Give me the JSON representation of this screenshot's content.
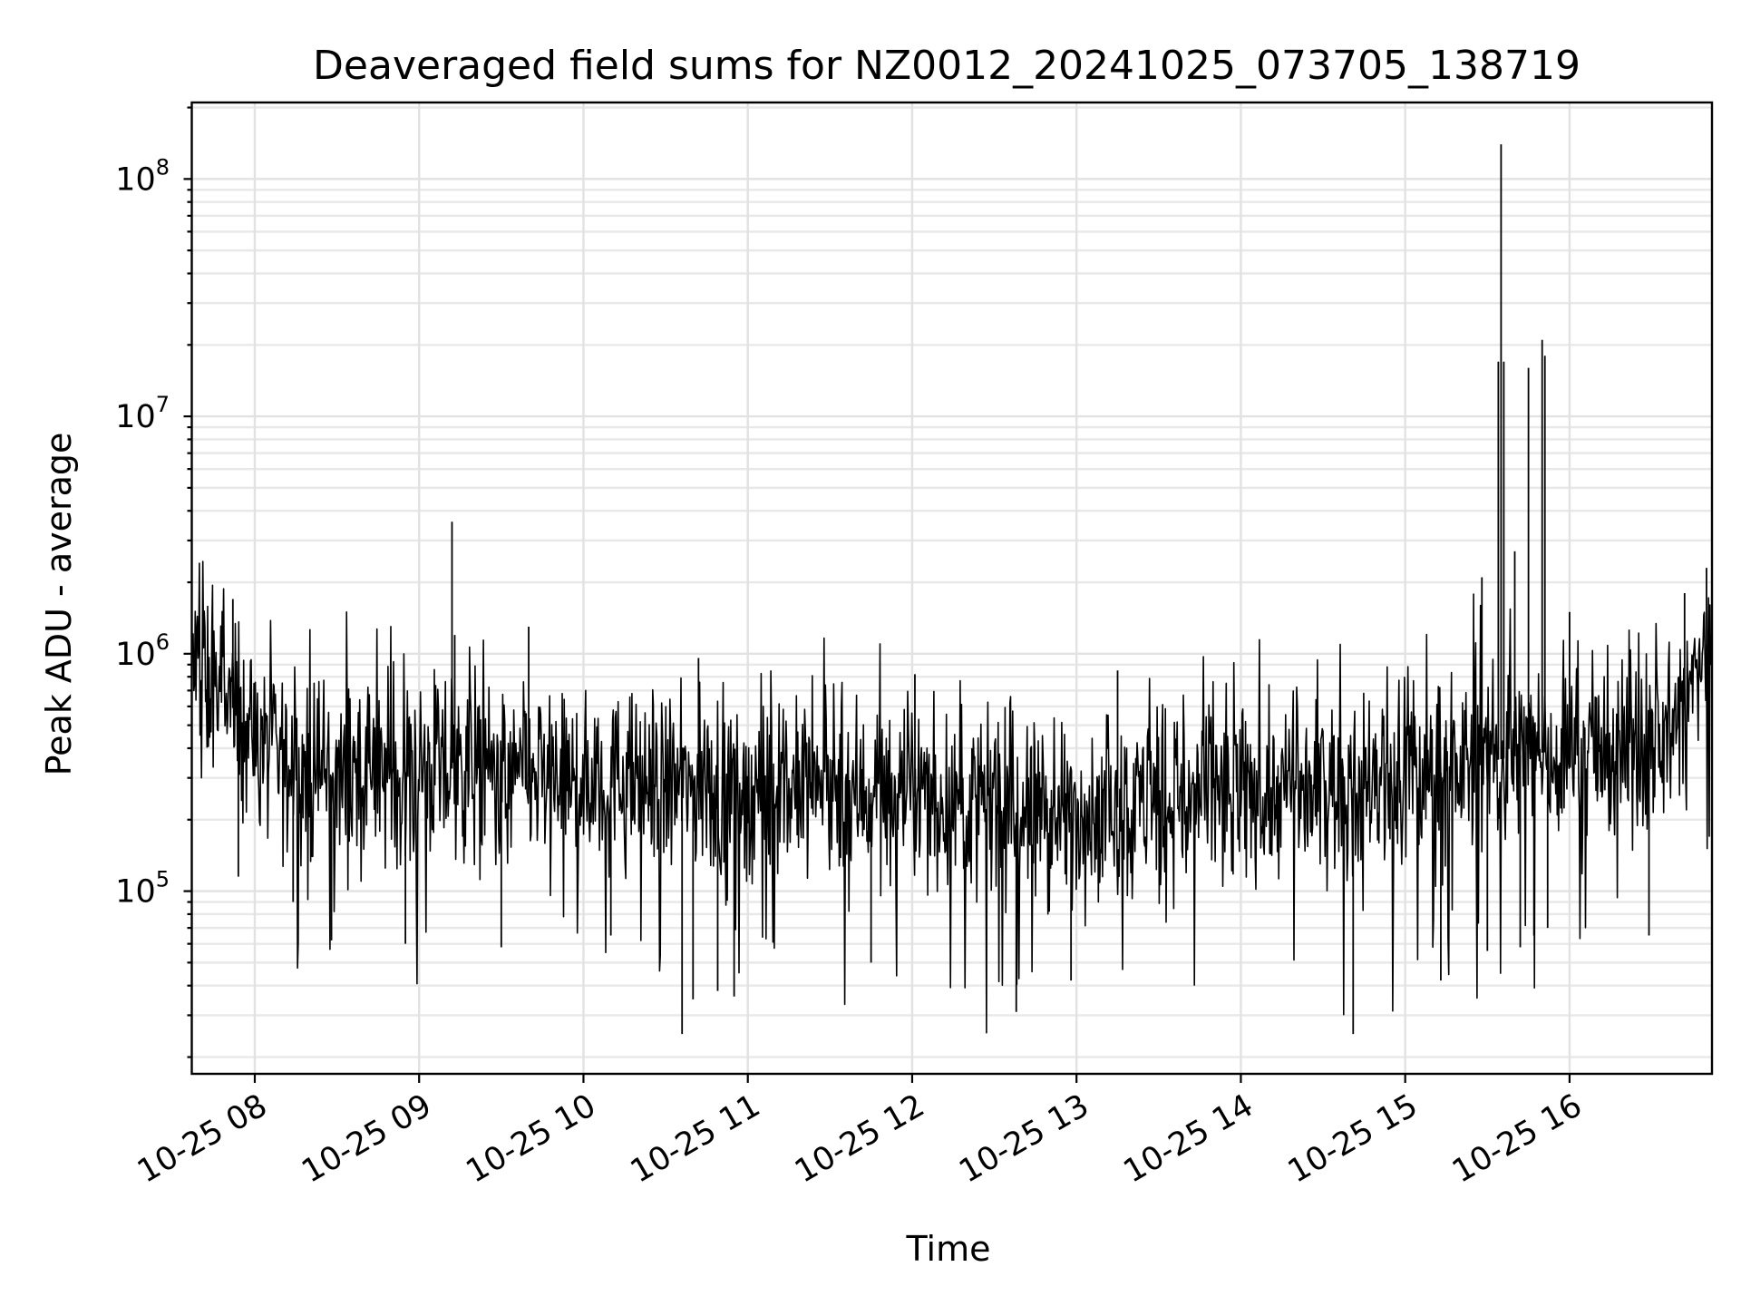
{
  "chart_data": {
    "type": "line",
    "title": "Deaveraged field sums for NZ0012_20241025_073705_138719",
    "xlabel": "Time",
    "ylabel": "Peak ADU - average",
    "yscale": "log",
    "ylim": [
      17000,
      210000000
    ],
    "xlim": [
      "2024-10-25 07:37",
      "2024-10-25 16:52"
    ],
    "grid": "both",
    "line_color": "#000000",
    "x_ticks": [
      {
        "label": "10-25 08",
        "t": "2024-10-25 08:00"
      },
      {
        "label": "10-25 09",
        "t": "2024-10-25 09:00"
      },
      {
        "label": "10-25 10",
        "t": "2024-10-25 10:00"
      },
      {
        "label": "10-25 11",
        "t": "2024-10-25 11:00"
      },
      {
        "label": "10-25 12",
        "t": "2024-10-25 12:00"
      },
      {
        "label": "10-25 13",
        "t": "2024-10-25 13:00"
      },
      {
        "label": "10-25 14",
        "t": "2024-10-25 14:00"
      },
      {
        "label": "10-25 15",
        "t": "2024-10-25 15:00"
      },
      {
        "label": "10-25 16",
        "t": "2024-10-25 16:00"
      }
    ],
    "y_ticks": [
      {
        "base": "10",
        "exp": "5",
        "value": 100000
      },
      {
        "base": "10",
        "exp": "6",
        "value": 1000000
      },
      {
        "base": "10",
        "exp": "7",
        "value": 10000000
      },
      {
        "base": "10",
        "exp": "8",
        "value": 100000000
      }
    ],
    "series": [
      {
        "baseline_points": [
          [
            "2024-10-25 07:37",
            900000
          ],
          [
            "2024-10-25 07:45",
            700000
          ],
          [
            "2024-10-25 07:55",
            550000
          ],
          [
            "2024-10-25 08:05",
            380000
          ],
          [
            "2024-10-25 08:15",
            330000
          ],
          [
            "2024-10-25 08:30",
            300000
          ],
          [
            "2024-10-25 08:45",
            310000
          ],
          [
            "2024-10-25 09:00",
            320000
          ],
          [
            "2024-10-25 09:15",
            330000
          ],
          [
            "2024-10-25 09:30",
            310000
          ],
          [
            "2024-10-25 09:45",
            300000
          ],
          [
            "2024-10-25 10:00",
            290000
          ],
          [
            "2024-10-25 10:15",
            290000
          ],
          [
            "2024-10-25 10:30",
            280000
          ],
          [
            "2024-10-25 10:45",
            270000
          ],
          [
            "2024-10-25 11:00",
            270000
          ],
          [
            "2024-10-25 11:15",
            270000
          ],
          [
            "2024-10-25 11:30",
            265000
          ],
          [
            "2024-10-25 11:45",
            260000
          ],
          [
            "2024-10-25 12:00",
            250000
          ],
          [
            "2024-10-25 12:15",
            235000
          ],
          [
            "2024-10-25 12:30",
            220000
          ],
          [
            "2024-10-25 12:45",
            210000
          ],
          [
            "2024-10-25 13:00",
            215000
          ],
          [
            "2024-10-25 13:15",
            225000
          ],
          [
            "2024-10-25 13:30",
            235000
          ],
          [
            "2024-10-25 13:45",
            245000
          ],
          [
            "2024-10-25 14:00",
            255000
          ],
          [
            "2024-10-25 14:15",
            260000
          ],
          [
            "2024-10-25 14:30",
            265000
          ],
          [
            "2024-10-25 14:45",
            275000
          ],
          [
            "2024-10-25 15:00",
            290000
          ],
          [
            "2024-10-25 15:15",
            320000
          ],
          [
            "2024-10-25 15:30",
            350000
          ],
          [
            "2024-10-25 15:45",
            380000
          ],
          [
            "2024-10-25 16:00",
            390000
          ],
          [
            "2024-10-25 16:15",
            380000
          ],
          [
            "2024-10-25 16:30",
            390000
          ],
          [
            "2024-10-25 16:40",
            550000
          ],
          [
            "2024-10-25 16:46",
            800000
          ],
          [
            "2024-10-25 16:52",
            1150000
          ]
        ],
        "spikes": [
          {
            "t": "2024-10-25 07:52",
            "value": 1700000
          },
          {
            "t": "2024-10-25 07:54",
            "value": 115000
          },
          {
            "t": "2024-10-25 08:14",
            "value": 90000
          },
          {
            "t": "2024-10-25 08:28",
            "value": 62000
          },
          {
            "t": "2024-10-25 08:55",
            "value": 60000
          },
          {
            "t": "2024-10-25 09:12",
            "value": 3600000
          },
          {
            "t": "2024-10-25 09:13",
            "value": 1200000
          },
          {
            "t": "2024-10-25 09:30",
            "value": 58000
          },
          {
            "t": "2024-10-25 09:40",
            "value": 1300000
          },
          {
            "t": "2024-10-25 10:10",
            "value": 65000
          },
          {
            "t": "2024-10-25 10:36",
            "value": 25000
          },
          {
            "t": "2024-10-25 10:40",
            "value": 35000
          },
          {
            "t": "2024-10-25 10:42",
            "value": 960000
          },
          {
            "t": "2024-10-25 10:49",
            "value": 38000
          },
          {
            "t": "2024-10-25 10:55",
            "value": 36000
          },
          {
            "t": "2024-10-25 11:45",
            "value": 50000
          },
          {
            "t": "2024-10-25 12:01",
            "value": 820000
          },
          {
            "t": "2024-10-25 12:38",
            "value": 31000
          },
          {
            "t": "2024-10-25 12:58",
            "value": 42000
          },
          {
            "t": "2024-10-25 13:15",
            "value": 850000
          },
          {
            "t": "2024-10-25 14:41",
            "value": 25000
          },
          {
            "t": "2024-10-25 15:13",
            "value": 42000
          },
          {
            "t": "2024-10-25 15:28",
            "value": 2100000
          },
          {
            "t": "2024-10-25 15:30",
            "value": 56000
          },
          {
            "t": "2024-10-25 15:34",
            "value": 17000000
          },
          {
            "t": "2024-10-25 15:35",
            "value": 140000000
          },
          {
            "t": "2024-10-25 15:36",
            "value": 17000000
          },
          {
            "t": "2024-10-25 15:40",
            "value": 2700000
          },
          {
            "t": "2024-10-25 15:42",
            "value": 58000
          },
          {
            "t": "2024-10-25 15:45",
            "value": 16000000
          },
          {
            "t": "2024-10-25 15:47",
            "value": 65000
          },
          {
            "t": "2024-10-25 15:50",
            "value": 21000000
          },
          {
            "t": "2024-10-25 15:51",
            "value": 18000000
          },
          {
            "t": "2024-10-25 15:52",
            "value": 70000
          },
          {
            "t": "2024-10-25 16:00",
            "value": 1500000
          },
          {
            "t": "2024-10-25 16:29",
            "value": 65000
          },
          {
            "t": "2024-10-25 16:42",
            "value": 1800000
          },
          {
            "t": "2024-10-25 16:50",
            "value": 2300000
          }
        ]
      }
    ]
  }
}
